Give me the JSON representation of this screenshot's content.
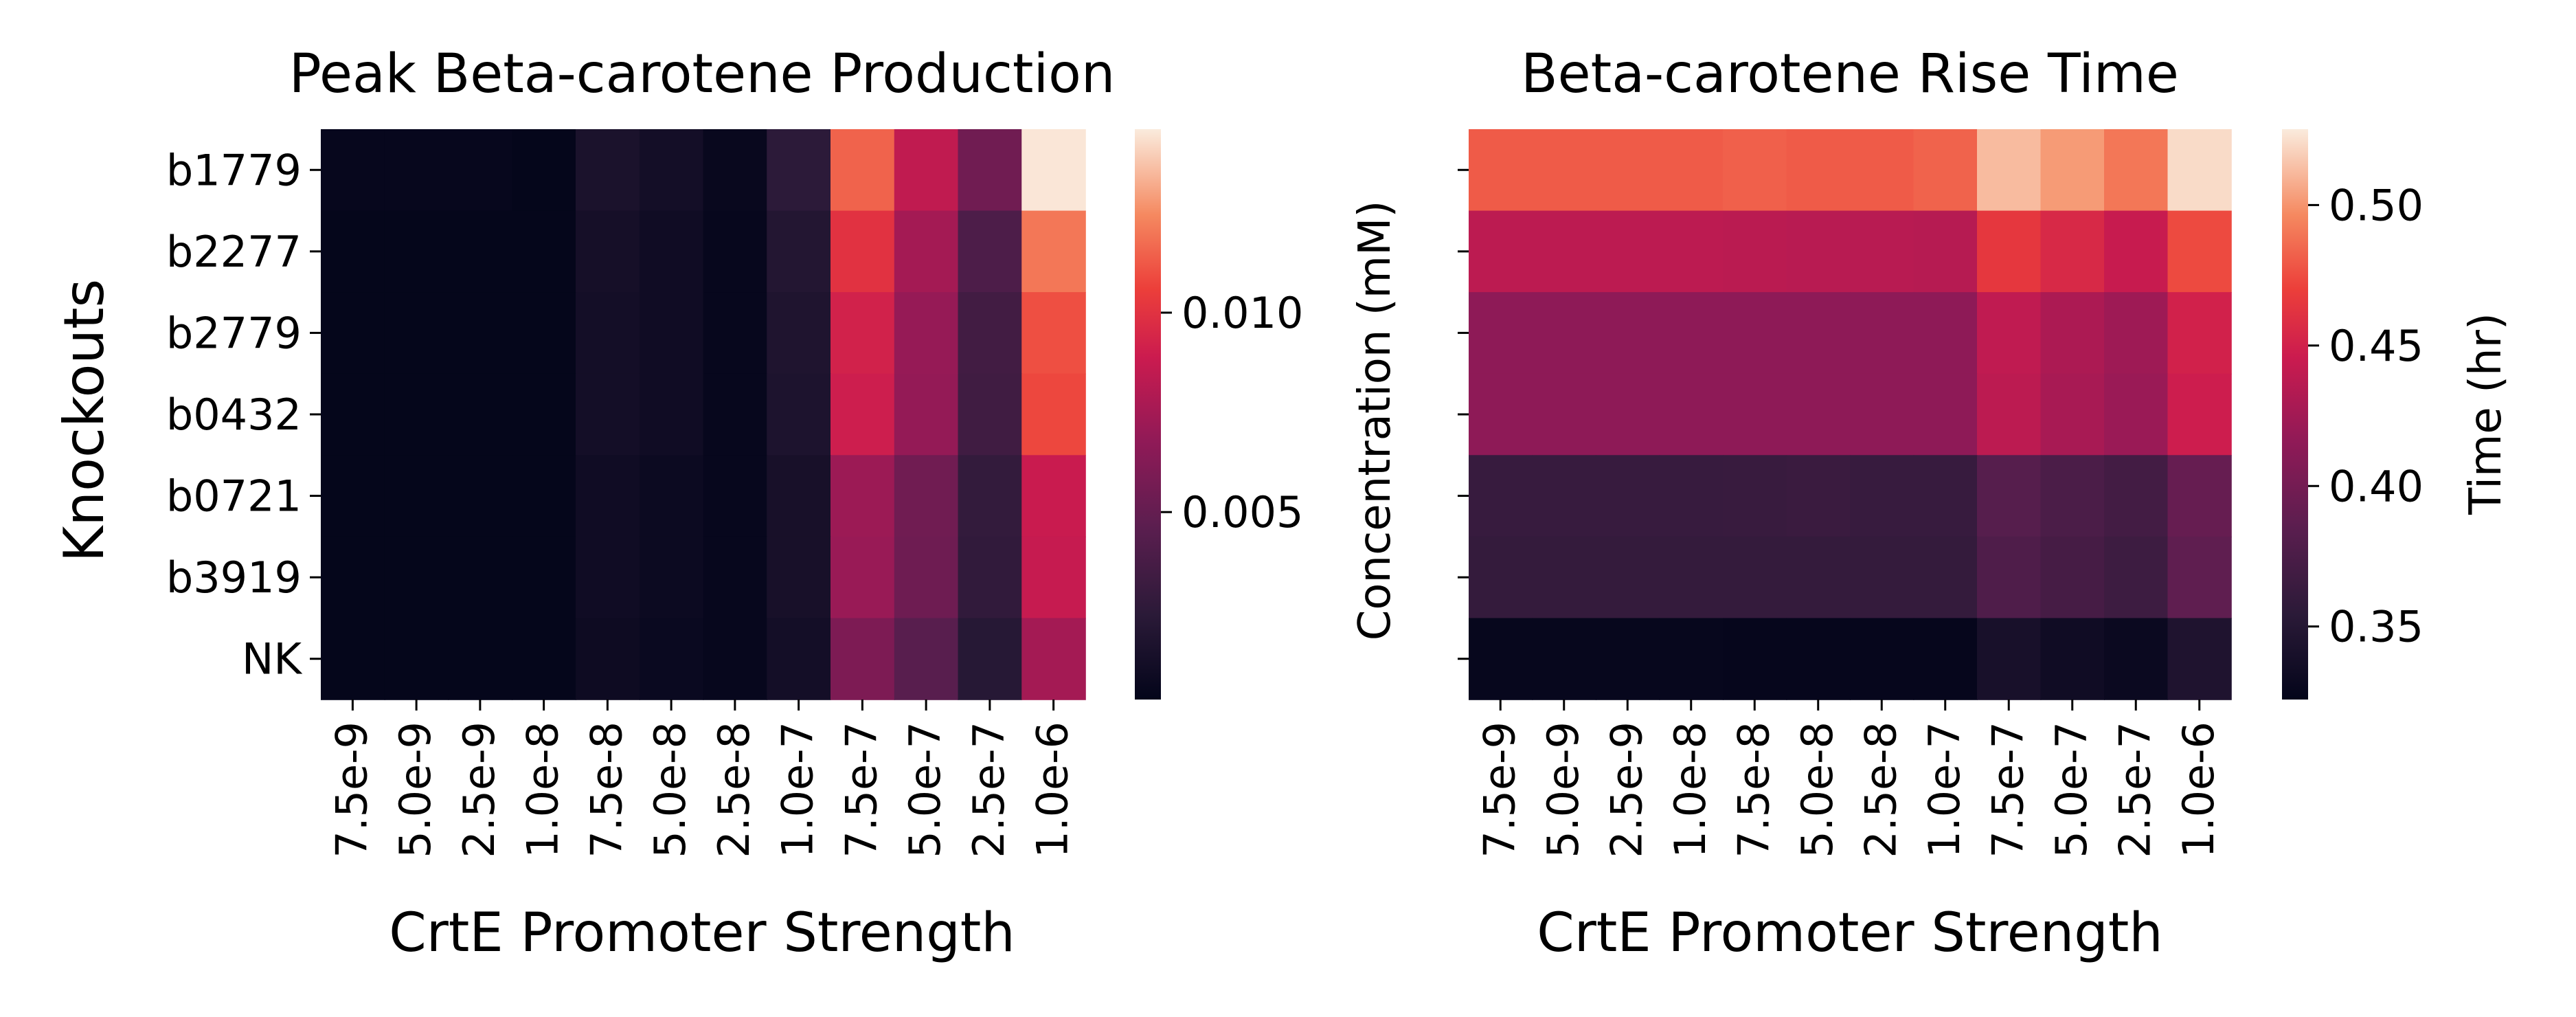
{
  "chart_data": [
    {
      "type": "heatmap",
      "title": "Peak Beta-carotene Production",
      "xlabel": "CrtE Promoter Strength",
      "ylabel": "Knockouts",
      "x_categories": [
        "7.5e-9",
        "5.0e-9",
        "2.5e-9",
        "1.0e-8",
        "7.5e-8",
        "5.0e-8",
        "2.5e-8",
        "1.0e-7",
        "7.5e-7",
        "5.0e-7",
        "2.5e-7",
        "1.0e-6"
      ],
      "y_categories": [
        "b1779",
        "b2277",
        "b2779",
        "b0432",
        "b0721",
        "b3919",
        "NK"
      ],
      "values": [
        [
          0.0005,
          0.0005,
          0.0005,
          0.0004,
          0.0016,
          0.0012,
          0.0006,
          0.0025,
          0.0115,
          0.0085,
          0.0055,
          0.0145
        ],
        [
          0.0004,
          0.0004,
          0.0004,
          0.0004,
          0.0013,
          0.001,
          0.0005,
          0.002,
          0.01,
          0.0075,
          0.004,
          0.012
        ],
        [
          0.0004,
          0.0004,
          0.0004,
          0.0004,
          0.0012,
          0.001,
          0.0005,
          0.0018,
          0.0092,
          0.007,
          0.0035,
          0.011
        ],
        [
          0.0004,
          0.0004,
          0.0004,
          0.0004,
          0.0012,
          0.001,
          0.0005,
          0.0017,
          0.009,
          0.0069,
          0.0034,
          0.0108
        ],
        [
          0.0004,
          0.0004,
          0.0004,
          0.0004,
          0.001,
          0.0008,
          0.0005,
          0.0014,
          0.0072,
          0.0055,
          0.0028,
          0.0088
        ],
        [
          0.0004,
          0.0004,
          0.0004,
          0.0004,
          0.001,
          0.0008,
          0.0005,
          0.0014,
          0.0071,
          0.0054,
          0.0027,
          0.0087
        ],
        [
          0.0004,
          0.0004,
          0.0004,
          0.0004,
          0.0009,
          0.0007,
          0.0005,
          0.0012,
          0.006,
          0.0045,
          0.0022,
          0.0075
        ]
      ],
      "colorbar": {
        "vmin": 0.0003,
        "vmax": 0.0146,
        "ticks": [
          0.005,
          0.01
        ],
        "tick_labels": [
          "0.005",
          "0.010"
        ],
        "label": ""
      },
      "colormap": "rocket"
    },
    {
      "type": "heatmap",
      "title": "Beta-carotene Rise Time",
      "xlabel": "CrtE Promoter Strength",
      "ylabel": "Concentration (mM)",
      "x_categories": [
        "7.5e-9",
        "5.0e-9",
        "2.5e-9",
        "1.0e-8",
        "7.5e-8",
        "5.0e-8",
        "2.5e-8",
        "1.0e-7",
        "7.5e-7",
        "5.0e-7",
        "2.5e-7",
        "1.0e-6"
      ],
      "y_categories": [
        "",
        "",
        "",
        "",
        "",
        "",
        ""
      ],
      "values": [
        [
          0.48,
          0.48,
          0.48,
          0.48,
          0.482,
          0.48,
          0.48,
          0.483,
          0.512,
          0.502,
          0.49,
          0.522
        ],
        [
          0.438,
          0.438,
          0.438,
          0.438,
          0.437,
          0.436,
          0.436,
          0.435,
          0.465,
          0.455,
          0.444,
          0.474
        ],
        [
          0.415,
          0.415,
          0.415,
          0.415,
          0.415,
          0.415,
          0.415,
          0.415,
          0.44,
          0.43,
          0.423,
          0.45
        ],
        [
          0.415,
          0.415,
          0.415,
          0.415,
          0.415,
          0.415,
          0.415,
          0.415,
          0.438,
          0.428,
          0.421,
          0.447
        ],
        [
          0.362,
          0.362,
          0.362,
          0.362,
          0.363,
          0.364,
          0.362,
          0.362,
          0.382,
          0.375,
          0.37,
          0.392
        ],
        [
          0.36,
          0.36,
          0.36,
          0.36,
          0.36,
          0.36,
          0.36,
          0.36,
          0.378,
          0.372,
          0.366,
          0.388
        ],
        [
          0.327,
          0.327,
          0.327,
          0.327,
          0.326,
          0.326,
          0.326,
          0.326,
          0.34,
          0.334,
          0.33,
          0.345
        ]
      ],
      "colorbar": {
        "vmin": 0.324,
        "vmax": 0.527,
        "ticks": [
          0.35,
          0.4,
          0.45,
          0.5
        ],
        "tick_labels": [
          "0.35",
          "0.40",
          "0.45",
          "0.50"
        ],
        "label": "Time (hr)"
      },
      "colormap": "rocket"
    }
  ]
}
